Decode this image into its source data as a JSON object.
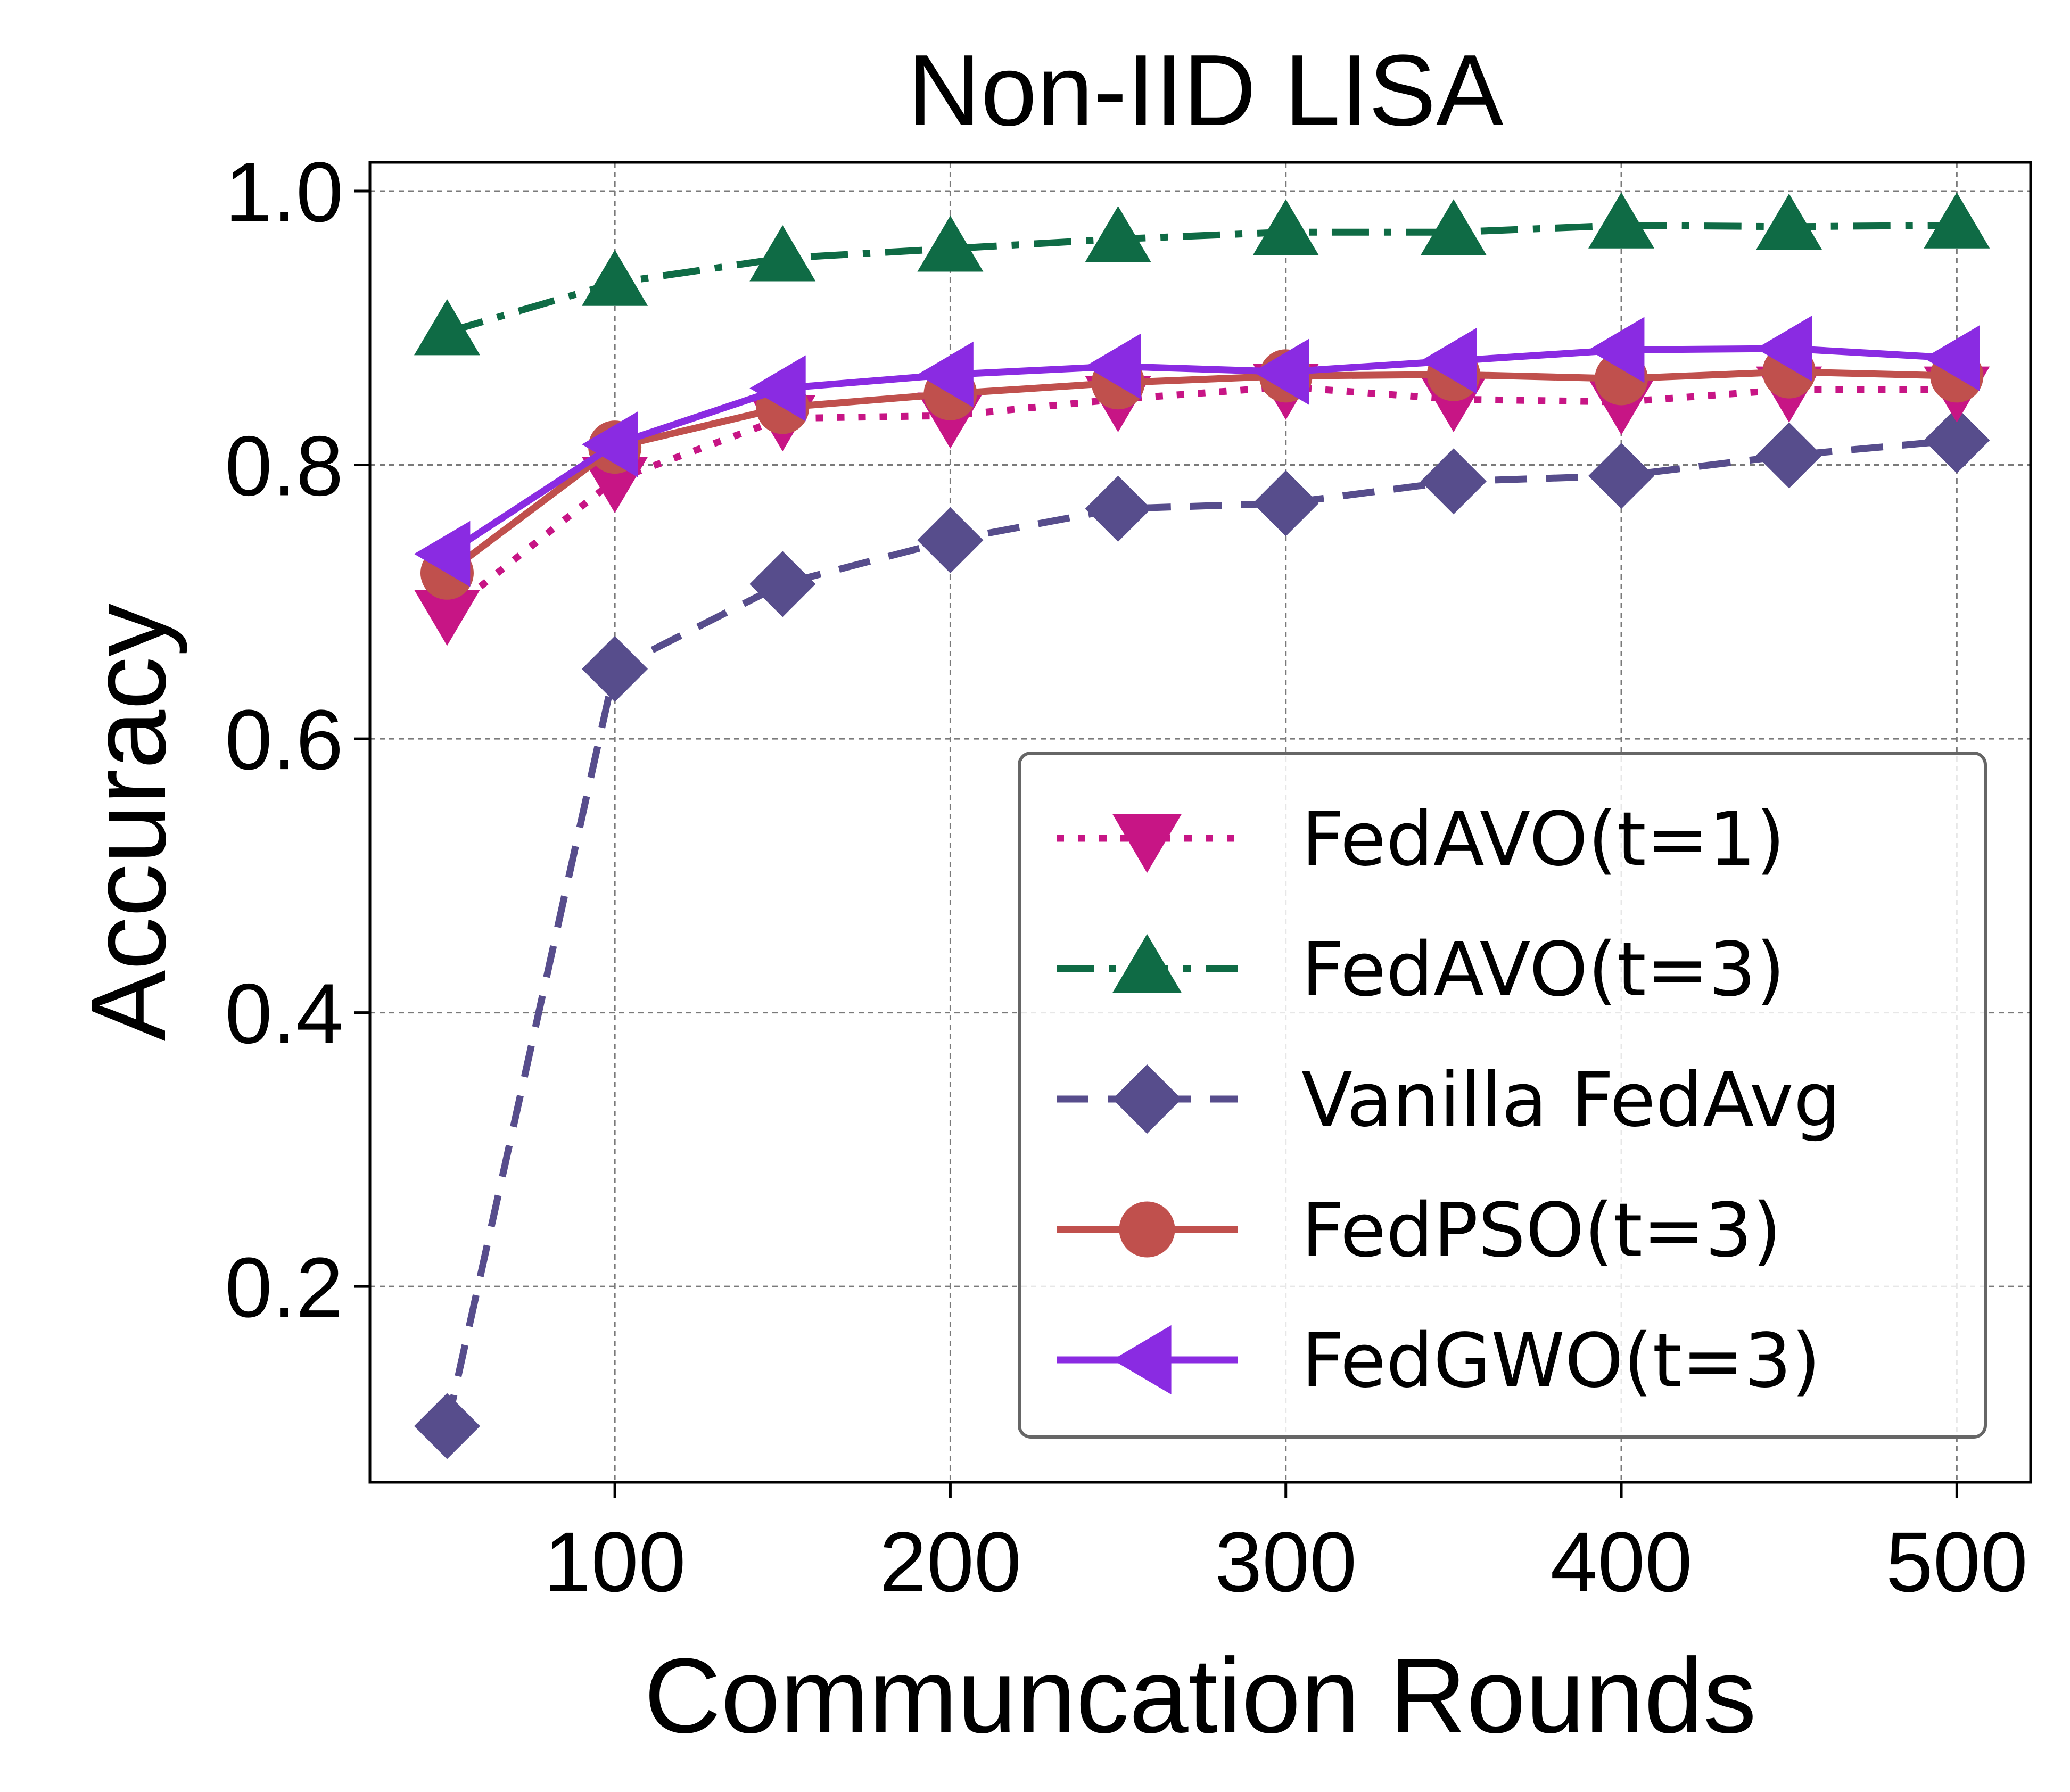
{
  "chart_data": {
    "type": "line",
    "title": "Non-IID LISA",
    "xlabel": "Communcation Rounds",
    "ylabel": "Accuracy",
    "xlim": [
      27,
      522
    ],
    "ylim": [
      0.057,
      1.021
    ],
    "xticks": [
      100,
      200,
      300,
      400,
      500
    ],
    "xtick_labels": [
      "100",
      "200",
      "300",
      "400",
      "500"
    ],
    "yticks": [
      0.2,
      0.4,
      0.6,
      0.8,
      1.0
    ],
    "ytick_labels": [
      "0.2",
      "0.4",
      "0.6",
      "0.8",
      "1.0"
    ],
    "grid": true,
    "legend_position": "lower-right",
    "x": [
      50,
      100,
      150,
      200,
      250,
      300,
      350,
      400,
      450,
      500
    ],
    "series": [
      {
        "name": "FedAVO(t=1)",
        "color": "#c71585",
        "line_style": "dotted",
        "marker": "triangle-down",
        "values": [
          0.692,
          0.789,
          0.834,
          0.836,
          0.848,
          0.857,
          0.848,
          0.846,
          0.855,
          0.855
        ]
      },
      {
        "name": "FedAVO(t=3)",
        "color": "#0f6b45",
        "line_style": "dash-dot",
        "marker": "triangle-up",
        "values": [
          0.897,
          0.933,
          0.951,
          0.958,
          0.965,
          0.97,
          0.97,
          0.975,
          0.974,
          0.975
        ]
      },
      {
        "name": "Vanilla FedAvg",
        "color": "#574d8c",
        "line_style": "dashed",
        "marker": "diamond",
        "values": [
          0.098,
          0.651,
          0.713,
          0.745,
          0.768,
          0.772,
          0.788,
          0.792,
          0.807,
          0.818
        ]
      },
      {
        "name": "FedPSO(t=3)",
        "color": "#c0504d",
        "line_style": "solid",
        "marker": "circle",
        "values": [
          0.721,
          0.813,
          0.842,
          0.852,
          0.86,
          0.865,
          0.866,
          0.863,
          0.868,
          0.865
        ]
      },
      {
        "name": "FedGWO(t=3)",
        "color": "#8a2be2",
        "line_style": "solid",
        "marker": "triangle-left",
        "values": [
          0.735,
          0.815,
          0.856,
          0.866,
          0.872,
          0.868,
          0.876,
          0.884,
          0.885,
          0.878
        ]
      }
    ]
  }
}
